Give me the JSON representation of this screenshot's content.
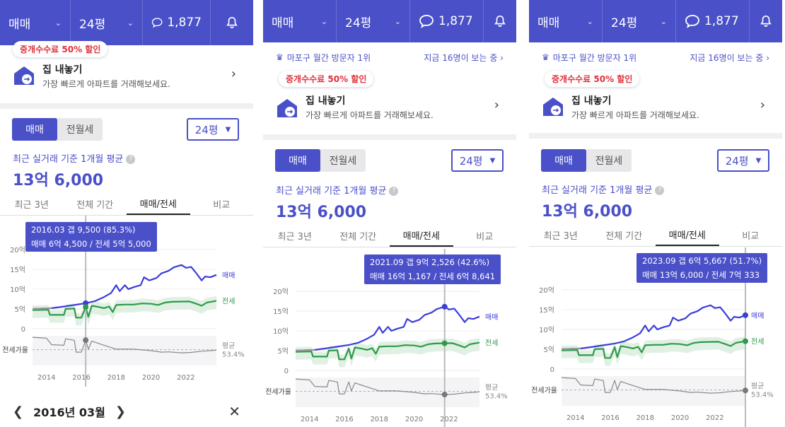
{
  "topbar": {
    "deal_type": "매매",
    "size": "24평",
    "comments": "1,877"
  },
  "info": {
    "rank": "마포구 월간 방문자 1위",
    "viewers": "지금 16명이 보는 중"
  },
  "listing": {
    "badge": "중개수수료 50% 할인",
    "title": "집 내놓기",
    "subtitle": "가장 빠르게 아파트를 거래해보세요."
  },
  "toggle": {
    "sale": "매매",
    "rent": "전월세"
  },
  "size_select": "24평",
  "avg": {
    "label": "최근 실거래 기준 1개월 평균",
    "price": "13억 6,000"
  },
  "tabs": [
    "최근 3년",
    "전체 기간",
    "매매/전세",
    "비교"
  ],
  "chart": {
    "y_ticks": [
      "20억",
      "15억",
      "10억",
      "5억",
      "0"
    ],
    "x_ticks": [
      "2014",
      "2016",
      "2018",
      "2020",
      "2022"
    ],
    "series_sale": "매매",
    "series_jeonse": "전세",
    "ratio_label": "전세가율",
    "avg_label": "평균",
    "avg_value": "53.4%"
  },
  "tooltips": [
    {
      "line1": "2016.03  갭 9,500 (85.3%)",
      "line2": "매매 6억 4,500 / 전세 5억 5,000"
    },
    {
      "line1": "2021.09  갭 9억 2,526 (42.6%)",
      "line2": "매매 16억 1,167 / 전세 6억 8,641"
    },
    {
      "line1": "2023.09  갭 6억 5,667 (51.7%)",
      "line2": "매매 13억 6,000 / 전세 7억 333"
    }
  ],
  "bottom": {
    "month": "2016년 03월"
  },
  "chart_data": {
    "type": "line",
    "ylabel": "",
    "ylim": [
      0,
      20
    ],
    "x_range": [
      2013.2,
      2023.75
    ],
    "series": [
      {
        "name": "매매",
        "color": "#3b3ed8",
        "points": [
          [
            2013.2,
            5.0
          ],
          [
            2014.3,
            5.2
          ],
          [
            2015.0,
            5.6
          ],
          [
            2015.6,
            6.0
          ],
          [
            2016.25,
            6.45
          ],
          [
            2016.8,
            7.0
          ],
          [
            2017.3,
            8.0
          ],
          [
            2017.7,
            9.0
          ],
          [
            2018.0,
            11.0
          ],
          [
            2018.2,
            9.5
          ],
          [
            2018.5,
            11.0
          ],
          [
            2018.7,
            10.0
          ],
          [
            2019.0,
            10.5
          ],
          [
            2019.4,
            11.0
          ],
          [
            2019.6,
            13.0
          ],
          [
            2019.9,
            12.2
          ],
          [
            2020.3,
            12.8
          ],
          [
            2020.6,
            14.0
          ],
          [
            2021.0,
            14.6
          ],
          [
            2021.3,
            15.5
          ],
          [
            2021.75,
            16.1
          ],
          [
            2022.0,
            15.4
          ],
          [
            2022.3,
            15.6
          ],
          [
            2022.6,
            14.0
          ],
          [
            2022.9,
            12.2
          ],
          [
            2023.1,
            13.2
          ],
          [
            2023.4,
            13.0
          ],
          [
            2023.75,
            13.6
          ]
        ]
      },
      {
        "name": "전세",
        "color": "#2e9a48",
        "points": [
          [
            2013.2,
            4.7
          ],
          [
            2014.1,
            4.8
          ],
          [
            2014.2,
            3.5
          ],
          [
            2015.0,
            3.5
          ],
          [
            2015.1,
            5.0
          ],
          [
            2015.6,
            5.1
          ],
          [
            2015.7,
            2.8
          ],
          [
            2016.0,
            2.8
          ],
          [
            2016.25,
            5.5
          ],
          [
            2016.4,
            3.0
          ],
          [
            2016.6,
            5.8
          ],
          [
            2017.0,
            5.5
          ],
          [
            2017.3,
            5.2
          ],
          [
            2017.6,
            5.6
          ],
          [
            2017.8,
            4.2
          ],
          [
            2018.0,
            6.0
          ],
          [
            2018.5,
            6.1
          ],
          [
            2019.0,
            6.1
          ],
          [
            2019.5,
            6.4
          ],
          [
            2020.0,
            6.3
          ],
          [
            2020.4,
            6.0
          ],
          [
            2020.8,
            6.6
          ],
          [
            2021.2,
            6.8
          ],
          [
            2021.75,
            6.86
          ],
          [
            2022.2,
            6.9
          ],
          [
            2022.6,
            6.3
          ],
          [
            2022.9,
            5.8
          ],
          [
            2023.2,
            6.6
          ],
          [
            2023.75,
            7.03
          ]
        ]
      },
      {
        "name": "전세가율",
        "color": "#888888",
        "points": [
          [
            2013.2,
            0.95
          ],
          [
            2014.0,
            0.92
          ],
          [
            2014.3,
            0.7
          ],
          [
            2015.0,
            0.68
          ],
          [
            2015.1,
            0.9
          ],
          [
            2015.6,
            0.85
          ],
          [
            2015.7,
            0.45
          ],
          [
            2016.0,
            0.45
          ],
          [
            2016.25,
            0.853
          ],
          [
            2016.4,
            0.55
          ],
          [
            2016.6,
            0.82
          ],
          [
            2017.2,
            0.7
          ],
          [
            2018.0,
            0.55
          ],
          [
            2019.0,
            0.55
          ],
          [
            2020.0,
            0.5
          ],
          [
            2020.6,
            0.45
          ],
          [
            2021.0,
            0.46
          ],
          [
            2021.75,
            0.426
          ],
          [
            2022.3,
            0.44
          ],
          [
            2022.9,
            0.48
          ],
          [
            2023.4,
            0.5
          ],
          [
            2023.75,
            0.517
          ]
        ]
      }
    ]
  }
}
